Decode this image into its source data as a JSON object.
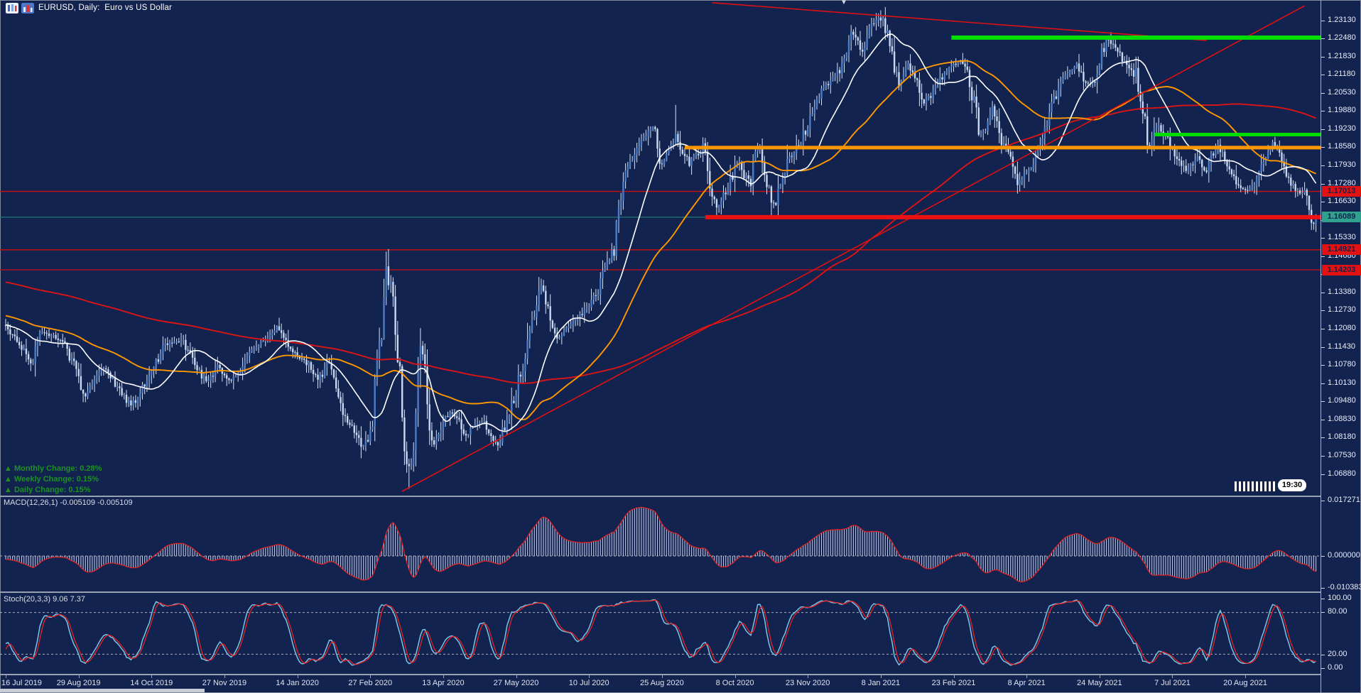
{
  "window": {
    "title": "EURUSD, Daily:  Euro vs US Dollar",
    "marker": "▼"
  },
  "indicators": {
    "macd": {
      "name": "MACD(12,26,1)",
      "values": "-0.005109 -0.005109",
      "axis": [
        "0.017271",
        "0.000000",
        "-0.010383"
      ],
      "fast": 12,
      "slow": 26,
      "signal": 1
    },
    "stoch": {
      "name": "Stoch(20,3,3)",
      "values": "9.06 7.37",
      "axis": [
        "100.00",
        "80.00",
        "20.00",
        "0.00"
      ],
      "levels": [
        80,
        20
      ],
      "k_period": 20,
      "slowing": 3,
      "d_period": 3
    }
  },
  "changes": [
    {
      "arrow": "▲",
      "text": " Monthly Change: 0.28%"
    },
    {
      "arrow": "▲",
      "text": " Weekly Change: 0.15%"
    },
    {
      "arrow": "▲",
      "text": " Daily Change: 0.15%"
    }
  ],
  "countdown": "19:30",
  "price_axis": {
    "labels": [
      "1.23130",
      "1.22480",
      "1.21830",
      "1.21180",
      "1.20530",
      "1.19880",
      "1.19230",
      "1.18580",
      "1.17930",
      "1.17280",
      "1.16630",
      "1.15980",
      "1.15330",
      "1.14680",
      "1.14030",
      "1.13380",
      "1.12730",
      "1.12080",
      "1.11430",
      "1.10780",
      "1.10130",
      "1.09480",
      "1.08830",
      "1.08180",
      "1.07530",
      "1.06880"
    ],
    "tags": [
      {
        "text": "1.17013",
        "price": 1.17013,
        "color": "#e31212"
      },
      {
        "text": "1.16089",
        "price": 1.16089,
        "color": "#2fa18c"
      },
      {
        "text": "1.14921",
        "price": 1.14921,
        "color": "#e31212"
      },
      {
        "text": "1.14203",
        "price": 1.14203,
        "color": "#e31212"
      }
    ]
  },
  "date_axis": {
    "labels": [
      "16 Jul 2019",
      "29 Aug 2019",
      "14 Oct 2019",
      "27 Nov 2019",
      "14 Jan 2020",
      "27 Feb 2020",
      "13 Apr 2020",
      "27 May 2020",
      "10 Jul 2020",
      "25 Aug 2020",
      "8 Oct 2020",
      "23 Nov 2020",
      "8 Jan 2021",
      "23 Feb 2021",
      "8 Apr 2021",
      "24 May 2021",
      "7 Jul 2021",
      "20 Aug 2021"
    ],
    "bars_per_label": 32
  },
  "chart_data": {
    "type": "candlestick",
    "symbol": "EURUSD",
    "timeframe": "Daily",
    "description": "Euro vs US Dollar",
    "visible_price_range": [
      1.0636,
      1.2366
    ],
    "last_close": 1.16089,
    "macd_axis_range": [
      -0.010383,
      0.017271
    ],
    "stoch_axis_range": [
      0,
      100
    ],
    "prehistory_start": 1.1545,
    "prehistory_days": 200,
    "noise_seed": 11,
    "close_anchors": [
      0,
      1.1212,
      7,
      1.115,
      12,
      1.1065,
      15,
      1.1197,
      22,
      1.118,
      27,
      1.1145,
      33,
      1.0992,
      35,
      1.0972,
      40,
      1.104,
      43,
      1.1073,
      48,
      1.1013,
      55,
      1.093,
      59,
      1.098,
      63,
      1.104,
      70,
      1.1152,
      78,
      1.1166,
      83,
      1.108,
      88,
      1.1015,
      93,
      1.107,
      98,
      1.1018,
      103,
      1.1065,
      108,
      1.113,
      114,
      1.1175,
      119,
      1.1212,
      123,
      1.116,
      127,
      1.1122,
      132,
      1.109,
      137,
      1.1022,
      142,
      1.1093,
      146,
      1.098,
      148,
      1.0905,
      152,
      1.0855,
      156,
      1.079,
      159,
      1.0815,
      161,
      1.085,
      164,
      1.113,
      166,
      1.128,
      168,
      1.145,
      169,
      1.136,
      171,
      1.1184,
      174,
      1.088,
      176,
      1.072,
      177,
      1.07,
      179,
      1.077,
      180,
      1.08,
      182,
      1.1141,
      184,
      1.103,
      185,
      1.095,
      188,
      1.0791,
      191,
      1.086,
      195,
      1.0915,
      199,
      1.087,
      202,
      1.082,
      205,
      1.0855,
      209,
      1.088,
      213,
      1.0825,
      216,
      1.08,
      220,
      1.089,
      224,
      1.098,
      228,
      1.111,
      231,
      1.125,
      235,
      1.137,
      238,
      1.129,
      242,
      1.1177,
      245,
      1.12,
      247,
      1.1219,
      250,
      1.124,
      252,
      1.1255,
      255,
      1.128,
      257,
      1.13,
      260,
      1.135,
      262,
      1.141,
      265,
      1.146,
      267,
      1.151,
      269,
      1.162,
      272,
      1.1778,
      275,
      1.182,
      278,
      1.187,
      281,
      1.19,
      284,
      1.193,
      287,
      1.1797,
      291,
      1.185,
      294,
      1.191,
      297,
      1.184,
      300,
      1.1801,
      303,
      1.183,
      306,
      1.185,
      309,
      1.174,
      312,
      1.1631,
      315,
      1.168,
      317,
      1.172,
      320,
      1.178,
      322,
      1.1826,
      324,
      1.176,
      326,
      1.1709,
      328,
      1.181,
      330,
      1.1862,
      332,
      1.178,
      334,
      1.172,
      336,
      1.168,
      338,
      1.164,
      341,
      1.175,
      343,
      1.1813,
      346,
      1.184,
      348,
      1.187,
      351,
      1.192,
      353,
      1.196,
      356,
      1.201,
      359,
      1.2071,
      362,
      1.21,
      365,
      1.212,
      368,
      1.218,
      371,
      1.2264,
      374,
      1.223,
      376,
      1.22,
      378,
      1.225,
      380,
      1.2299,
      382,
      1.231,
      384,
      1.2327,
      386,
      1.228,
      388,
      1.222,
      390,
      1.214,
      392,
      1.2078,
      394,
      1.213,
      396,
      1.216,
      399,
      1.2111,
      401,
      1.206,
      403,
      1.202,
      406,
      1.2045,
      409,
      1.209,
      412,
      1.212,
      415,
      1.215,
      418,
      1.216,
      420,
      1.2175,
      422,
      1.212,
      424,
      1.207,
      426,
      1.198,
      428,
      1.19,
      430,
      1.193,
      433,
      1.199,
      435,
      1.193,
      437,
      1.188,
      440,
      1.183,
      442,
      1.178,
      444,
      1.173,
      447,
      1.176,
      450,
      1.178,
      453,
      1.185,
      455,
      1.191,
      458,
      1.198,
      460,
      1.203,
      463,
      1.208,
      465,
      1.2121,
      468,
      1.214,
      470,
      1.215,
      473,
      1.21,
      477,
      1.207,
      480,
      1.216,
      483,
      1.225,
      486,
      1.222,
      489,
      1.219,
      492,
      1.215,
      496,
      1.2108,
      499,
      1.2,
      501,
      1.1863,
      504,
      1.192,
      506,
      1.1938,
      509,
      1.19,
      511,
      1.1865,
      513,
      1.183,
      515,
      1.1805,
      518,
      1.1775,
      521,
      1.18,
      523,
      1.183,
      525,
      1.1795,
      527,
      1.177,
      529,
      1.182,
      531,
      1.187,
      534,
      1.183,
      536,
      1.179,
      538,
      1.176,
      540,
      1.173,
      543,
      1.171,
      546,
      1.1697,
      549,
      1.176,
      551,
      1.1795,
      554,
      1.184,
      556,
      1.188,
      558,
      1.185,
      560,
      1.181,
      562,
      1.177,
      564,
      1.173,
      566,
      1.171,
      568,
      1.169,
      570,
      1.17,
      571,
      1.1685,
      573,
      1.16,
      574,
      1.1585,
      575,
      1.16089
    ],
    "extremes": [
      {
        "day": 168,
        "high": 1.1495
      },
      {
        "day": 177,
        "low": 1.0636
      },
      {
        "day": 294,
        "high": 1.2011
      },
      {
        "day": 384,
        "high": 1.2349
      },
      {
        "day": 573,
        "low": 1.1563
      }
    ],
    "moving_averages": [
      {
        "period": 200,
        "color": "#dd1414",
        "width": 1.9
      },
      {
        "period": 55,
        "color": "#ff9800",
        "width": 1.9
      },
      {
        "period": 20,
        "color": "#ffffff",
        "width": 1.6
      }
    ],
    "horizontal_lines": [
      {
        "price": 1.17013,
        "color": "#cf0f0f"
      },
      {
        "price": 1.14921,
        "color": "#cf0f0f"
      },
      {
        "price": 1.14203,
        "color": "#cf0f0f"
      }
    ],
    "price_line": {
      "price": 1.16089,
      "color": "#1f7a74"
    },
    "segments": [
      {
        "price": 1.1858,
        "from_day": 298,
        "color": "#ff9800",
        "thickness": 5
      },
      {
        "price": 1.1609,
        "from_day": 307,
        "color": "#ee1111",
        "thickness": 6
      },
      {
        "price": 1.2252,
        "from_day": 415,
        "color": "#00dd00",
        "thickness": 6
      },
      {
        "price": 1.1905,
        "from_day": 504,
        "color": "#00dd00",
        "thickness": 5
      }
    ],
    "trendlines": [
      {
        "from": [
          174,
          1.0627
        ],
        "to": [
          570,
          1.2366
        ],
        "color": "#dd1111"
      },
      {
        "from": [
          310,
          1.2377
        ],
        "to": [
          527,
          1.2242
        ],
        "color": "#dd1111"
      }
    ],
    "candle_colors": {
      "bull": "#4a7cc9",
      "bear": "#c7d9f2",
      "wick": "#d6e4f7"
    }
  }
}
